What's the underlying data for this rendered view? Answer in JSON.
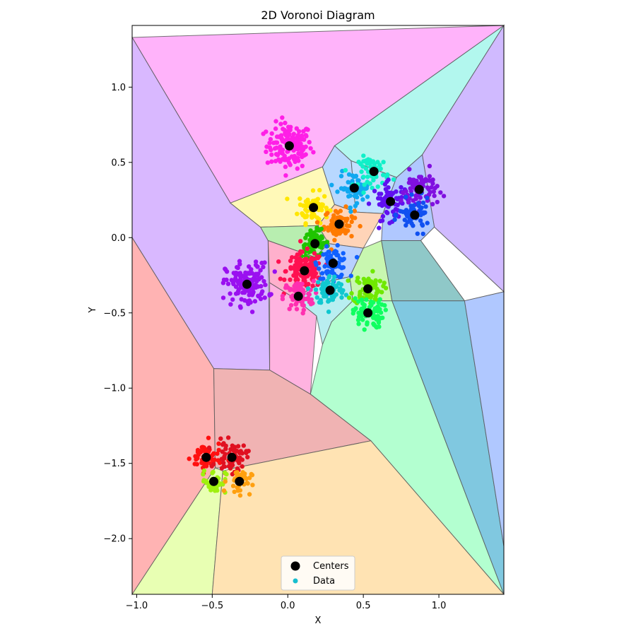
{
  "chart_data": {
    "type": "scatter",
    "title": "2D Voronoi Diagram",
    "xlabel": "X",
    "ylabel": "Y",
    "xlim": [
      -1.03,
      1.43
    ],
    "ylim": [
      -2.37,
      1.41
    ],
    "xticks": [
      -1.0,
      -0.5,
      0.0,
      0.5,
      1.0
    ],
    "xtick_labels": [
      "−1.0",
      "−0.5",
      "0.0",
      "0.5",
      "1.0"
    ],
    "yticks": [
      1.0,
      0.5,
      0.0,
      -0.5,
      -1.0,
      -1.5,
      -2.0
    ],
    "ytick_labels": [
      "1.0",
      "0.5",
      "0.0",
      "−0.5",
      "−1.0",
      "−1.5",
      "−2.0"
    ],
    "grid": false,
    "legend": {
      "placement": "lower-center",
      "entries": [
        {
          "label": "Centers",
          "marker": "large-black-dot"
        },
        {
          "label": "Data",
          "marker": "small-cyan-dot"
        }
      ]
    },
    "centers": [
      {
        "x": 0.01,
        "y": 0.61,
        "color": "#ff1fe6"
      },
      {
        "x": 0.17,
        "y": 0.2,
        "color": "#ffe600"
      },
      {
        "x": 0.34,
        "y": 0.09,
        "color": "#ff7a00"
      },
      {
        "x": 0.18,
        "y": -0.04,
        "color": "#1fc400"
      },
      {
        "x": 0.11,
        "y": -0.22,
        "color": "#ff1050"
      },
      {
        "x": 0.3,
        "y": -0.17,
        "color": "#1060ff"
      },
      {
        "x": 0.07,
        "y": -0.39,
        "color": "#ff30b0"
      },
      {
        "x": 0.28,
        "y": -0.35,
        "color": "#10c8d0"
      },
      {
        "x": 0.53,
        "y": -0.34,
        "color": "#70e800"
      },
      {
        "x": 0.53,
        "y": -0.5,
        "color": "#10ff60"
      },
      {
        "x": -0.27,
        "y": -0.31,
        "color": "#9a10f0"
      },
      {
        "x": 0.44,
        "y": 0.33,
        "color": "#10a8f0"
      },
      {
        "x": 0.57,
        "y": 0.44,
        "color": "#10f0c8"
      },
      {
        "x": 0.68,
        "y": 0.24,
        "color": "#6010f0"
      },
      {
        "x": 0.87,
        "y": 0.32,
        "color": "#8010e0"
      },
      {
        "x": 0.84,
        "y": 0.15,
        "color": "#1050f0"
      },
      {
        "x": -0.54,
        "y": -1.46,
        "color": "#ff1010"
      },
      {
        "x": -0.37,
        "y": -1.46,
        "color": "#e01020"
      },
      {
        "x": -0.49,
        "y": -1.62,
        "color": "#a0f010"
      },
      {
        "x": -0.32,
        "y": -1.62,
        "color": "#ffa010"
      }
    ],
    "cluster_spread": [
      {
        "n": 140,
        "s": 0.075
      },
      {
        "n": 70,
        "s": 0.05
      },
      {
        "n": 70,
        "s": 0.05
      },
      {
        "n": 70,
        "s": 0.045
      },
      {
        "n": 130,
        "s": 0.06
      },
      {
        "n": 70,
        "s": 0.05
      },
      {
        "n": 70,
        "s": 0.05
      },
      {
        "n": 70,
        "s": 0.05
      },
      {
        "n": 70,
        "s": 0.05
      },
      {
        "n": 70,
        "s": 0.05
      },
      {
        "n": 150,
        "s": 0.07
      },
      {
        "n": 60,
        "s": 0.05
      },
      {
        "n": 60,
        "s": 0.05
      },
      {
        "n": 70,
        "s": 0.06
      },
      {
        "n": 70,
        "s": 0.06
      },
      {
        "n": 60,
        "s": 0.05
      },
      {
        "n": 60,
        "s": 0.05
      },
      {
        "n": 60,
        "s": 0.05
      },
      {
        "n": 40,
        "s": 0.04
      },
      {
        "n": 40,
        "s": 0.04
      }
    ],
    "regions": [
      {
        "fill": "#ffb3fa",
        "vertices": [
          [
            -1.03,
            1.33
          ],
          [
            1.43,
            1.41
          ],
          [
            0.31,
            0.61
          ],
          [
            0.23,
            0.47
          ],
          [
            -0.38,
            0.23
          ],
          [
            -1.03,
            1.33
          ]
        ]
      },
      {
        "fill": "#b2f7ee",
        "vertices": [
          [
            1.43,
            1.41
          ],
          [
            0.31,
            0.61
          ],
          [
            0.42,
            0.51
          ],
          [
            0.72,
            0.4
          ],
          [
            0.89,
            0.55
          ],
          [
            1.43,
            1.41
          ]
        ]
      },
      {
        "fill": "#d0baff",
        "vertices": [
          [
            1.43,
            1.41
          ],
          [
            0.89,
            0.55
          ],
          [
            0.97,
            0.07
          ],
          [
            1.43,
            -0.36
          ]
        ]
      },
      {
        "fill": "#d9b8ff",
        "vertices": [
          [
            -1.03,
            1.33
          ],
          [
            -0.38,
            0.23
          ],
          [
            -0.18,
            0.07
          ],
          [
            -0.13,
            -0.02
          ],
          [
            -0.12,
            -0.88
          ],
          [
            -0.49,
            -0.87
          ],
          [
            -1.03,
            0.0
          ]
        ]
      },
      {
        "fill": "#ffb3b3",
        "vertices": [
          [
            -1.03,
            0.0
          ],
          [
            -0.49,
            -0.87
          ],
          [
            -0.48,
            -1.53
          ],
          [
            -1.03,
            -2.37
          ]
        ]
      },
      {
        "fill": "#fff9b8",
        "vertices": [
          [
            -0.38,
            0.23
          ],
          [
            0.23,
            0.47
          ],
          [
            0.31,
            0.22
          ],
          [
            0.2,
            0.08
          ],
          [
            -0.18,
            0.07
          ]
        ]
      },
      {
        "fill": "#b8d8ff",
        "vertices": [
          [
            0.31,
            0.61
          ],
          [
            0.23,
            0.47
          ],
          [
            0.31,
            0.22
          ],
          [
            0.45,
            0.17
          ],
          [
            0.42,
            0.51
          ]
        ]
      },
      {
        "fill": "#c2e0ff",
        "vertices": [
          [
            0.42,
            0.51
          ],
          [
            0.72,
            0.4
          ],
          [
            0.63,
            0.16
          ],
          [
            0.45,
            0.17
          ]
        ]
      },
      {
        "fill": "#b0c8ff",
        "vertices": [
          [
            0.72,
            0.4
          ],
          [
            0.89,
            0.55
          ],
          [
            0.97,
            0.07
          ],
          [
            0.88,
            -0.02
          ],
          [
            0.62,
            -0.02
          ],
          [
            0.63,
            0.16
          ]
        ]
      },
      {
        "fill": "#ffd4b8",
        "vertices": [
          [
            0.31,
            0.22
          ],
          [
            0.45,
            0.17
          ],
          [
            0.63,
            0.16
          ],
          [
            0.5,
            -0.07
          ],
          [
            0.27,
            -0.04
          ],
          [
            0.2,
            0.08
          ]
        ]
      },
      {
        "fill": "#b8eeb0",
        "vertices": [
          [
            -0.18,
            0.07
          ],
          [
            0.2,
            0.08
          ],
          [
            0.27,
            -0.04
          ],
          [
            0.18,
            -0.13
          ],
          [
            -0.13,
            -0.02
          ]
        ]
      },
      {
        "fill": "#c8f7b0",
        "vertices": [
          [
            0.5,
            -0.07
          ],
          [
            0.62,
            -0.02
          ],
          [
            0.69,
            -0.42
          ],
          [
            0.43,
            -0.42
          ],
          [
            0.41,
            -0.26
          ]
        ]
      },
      {
        "fill": "#ffffff",
        "vertices": [
          [
            0.88,
            -0.02
          ],
          [
            0.97,
            0.07
          ],
          [
            1.43,
            -0.36
          ],
          [
            1.17,
            -0.42
          ]
        ]
      },
      {
        "fill": "#8fc8c8",
        "vertices": [
          [
            0.62,
            -0.02
          ],
          [
            0.88,
            -0.02
          ],
          [
            1.17,
            -0.42
          ],
          [
            0.69,
            -0.42
          ]
        ]
      },
      {
        "fill": "#ffb0cc",
        "vertices": [
          [
            -0.13,
            -0.02
          ],
          [
            0.18,
            -0.13
          ],
          [
            0.23,
            -0.3
          ],
          [
            0.04,
            -0.4
          ],
          [
            -0.12,
            -0.3
          ]
        ]
      },
      {
        "fill": "#b8d0ff",
        "vertices": [
          [
            0.27,
            -0.04
          ],
          [
            0.5,
            -0.07
          ],
          [
            0.41,
            -0.26
          ],
          [
            0.23,
            -0.3
          ],
          [
            0.18,
            -0.13
          ]
        ]
      },
      {
        "fill": "#ffb3e0",
        "vertices": [
          [
            -0.12,
            -0.3
          ],
          [
            0.04,
            -0.4
          ],
          [
            0.19,
            -0.52
          ],
          [
            0.15,
            -1.04
          ],
          [
            -0.12,
            -0.88
          ]
        ]
      },
      {
        "fill": "#b8eef0",
        "vertices": [
          [
            0.23,
            -0.3
          ],
          [
            0.41,
            -0.26
          ],
          [
            0.43,
            -0.42
          ],
          [
            0.29,
            -0.56
          ],
          [
            0.23,
            -0.71
          ],
          [
            0.19,
            -0.52
          ],
          [
            0.04,
            -0.4
          ]
        ]
      },
      {
        "fill": "#b3ffd0",
        "vertices": [
          [
            0.43,
            -0.42
          ],
          [
            0.69,
            -0.42
          ],
          [
            1.43,
            -2.37
          ],
          [
            0.55,
            -1.35
          ],
          [
            0.15,
            -1.04
          ],
          [
            0.23,
            -0.71
          ],
          [
            0.29,
            -0.56
          ]
        ]
      },
      {
        "fill": "#80c8e0",
        "vertices": [
          [
            0.69,
            -0.42
          ],
          [
            1.17,
            -0.42
          ],
          [
            1.43,
            -2.05
          ],
          [
            1.43,
            -2.37
          ]
        ]
      },
      {
        "fill": "#b0c8ff",
        "vertices": [
          [
            1.17,
            -0.42
          ],
          [
            1.43,
            -0.36
          ],
          [
            1.43,
            -2.05
          ]
        ]
      },
      {
        "fill": "#f0b3b3",
        "vertices": [
          [
            -0.49,
            -0.87
          ],
          [
            -0.12,
            -0.88
          ],
          [
            0.15,
            -1.04
          ],
          [
            0.55,
            -1.35
          ],
          [
            -0.35,
            -1.53
          ],
          [
            -0.48,
            -1.53
          ]
        ]
      },
      {
        "fill": "#e8ffb3",
        "vertices": [
          [
            -1.03,
            -2.37
          ],
          [
            -0.48,
            -1.53
          ],
          [
            -0.43,
            -1.55
          ],
          [
            -0.5,
            -2.37
          ]
        ]
      },
      {
        "fill": "#ffe3b3",
        "vertices": [
          [
            -0.5,
            -2.37
          ],
          [
            -0.43,
            -1.55
          ],
          [
            -0.35,
            -1.53
          ],
          [
            0.55,
            -1.35
          ],
          [
            1.43,
            -2.37
          ]
        ]
      }
    ]
  }
}
